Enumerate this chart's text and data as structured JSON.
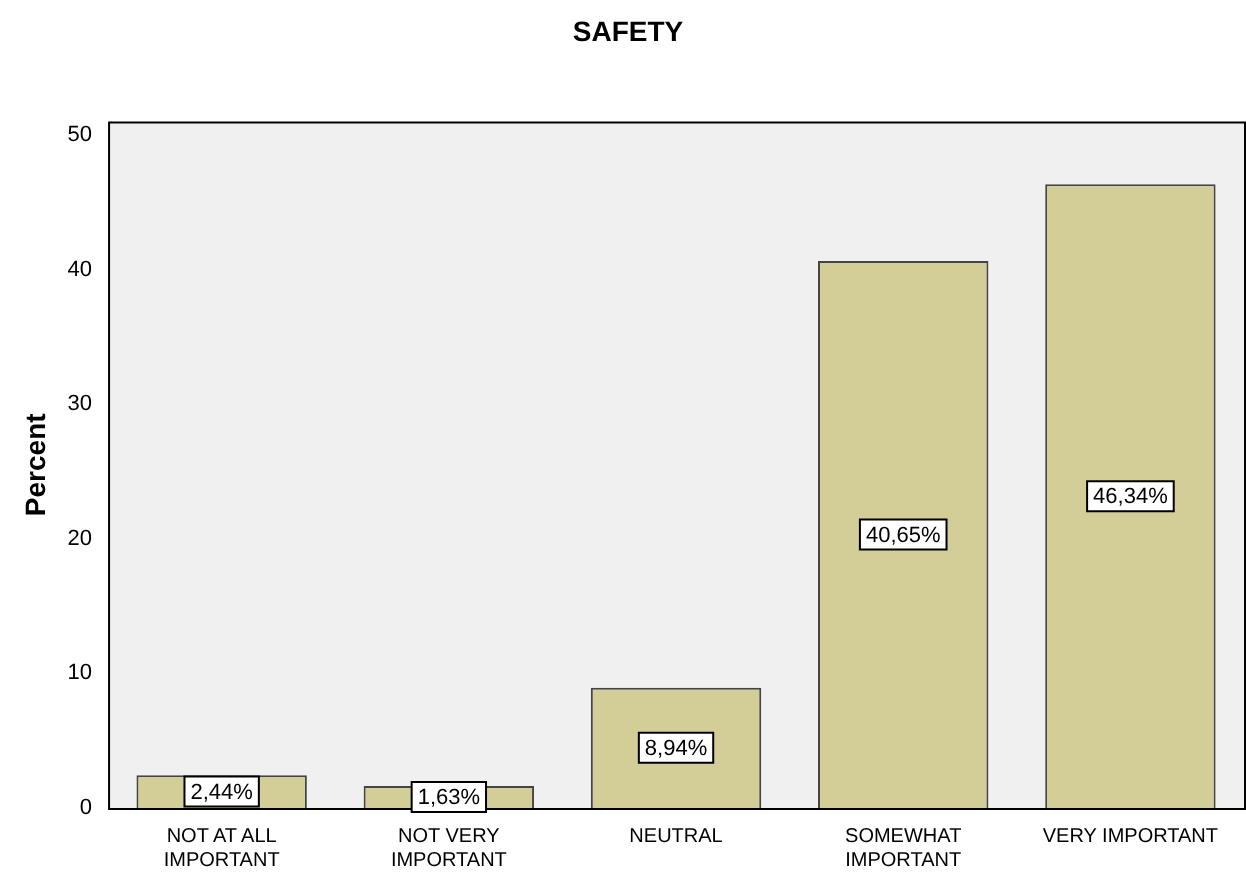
{
  "chart_data": {
    "type": "bar",
    "title": "SAFETY",
    "ylabel": "Percent",
    "categories": [
      "NOT AT ALL IMPORTANT",
      "NOT VERY IMPORTANT",
      "NEUTRAL",
      "SOMEWHAT IMPORTANT",
      "VERY IMPORTANT"
    ],
    "values": [
      2.44,
      1.63,
      8.94,
      40.65,
      46.34
    ],
    "value_labels": [
      "2,44%",
      "1,63%",
      "8,94%",
      "40,65%",
      "46,34%"
    ],
    "color": "#d3ce97",
    "ylim": [
      0,
      51
    ],
    "yticks": [
      0,
      10,
      20,
      30,
      40,
      50
    ],
    "grid": false,
    "legend": false
  }
}
